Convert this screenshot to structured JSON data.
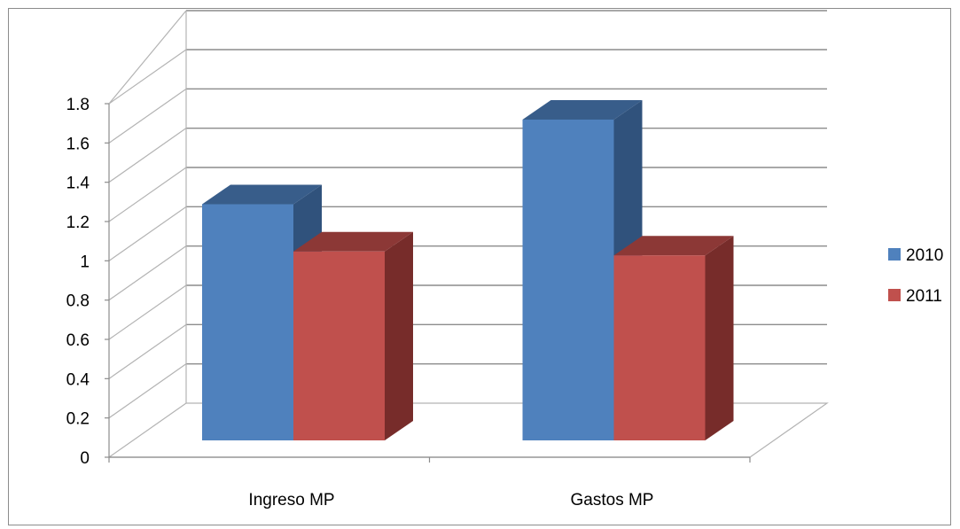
{
  "chart_data": {
    "type": "bar",
    "style": "3d-clustered-column",
    "title": "",
    "xlabel": "",
    "ylabel": "",
    "categories": [
      "Ingreso MP",
      "Gastos MP"
    ],
    "series": [
      {
        "name": "2010",
        "values": [
          1.2,
          1.63
        ],
        "color": "#4f81bd",
        "top_color": "#385d8a",
        "side_color": "#30527c"
      },
      {
        "name": "2011",
        "values": [
          0.96,
          0.94
        ],
        "color": "#c0504d",
        "top_color": "#8c3836",
        "side_color": "#772c2a"
      }
    ],
    "ylim": [
      0,
      1.8
    ],
    "y_ticks": [
      "0",
      "0.2",
      "0.4",
      "0.6",
      "0.8",
      "1",
      "1.2",
      "1.4",
      "1.6",
      "1.8"
    ],
    "grid": true,
    "legend_position": "right"
  }
}
